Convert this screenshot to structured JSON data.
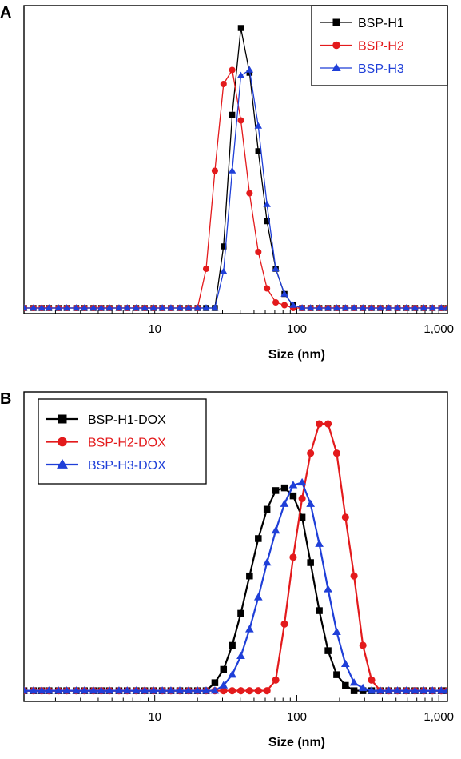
{
  "chart_data": [
    {
      "type": "line",
      "panel_label": "A",
      "xlabel": "Size (nm)",
      "xscale": "log",
      "xlim": [
        1.2,
        1150
      ],
      "ylim": [
        -0.02,
        1.08
      ],
      "y_axis_labels": false,
      "x_ticks": [
        {
          "value": 10,
          "label": "10"
        },
        {
          "value": 100,
          "label": "100"
        },
        {
          "value": 1000,
          "label": "1,000"
        }
      ],
      "legend": {
        "position": "top-right"
      },
      "series": [
        {
          "name": "BSP-H1",
          "color": "#000000",
          "marker": "square",
          "x": [
            1.2,
            1.4,
            1.6,
            1.8,
            2.1,
            2.4,
            2.8,
            3.2,
            3.7,
            4.2,
            4.8,
            5.6,
            6.4,
            7.4,
            8.5,
            9.8,
            11.3,
            13,
            15,
            17.3,
            20,
            23,
            26.5,
            30.5,
            35.1,
            40.4,
            46.5,
            53.6,
            61.7,
            71.1,
            81.9,
            94.3,
            109,
            125,
            144,
            166,
            191,
            220,
            253,
            292,
            336,
            387,
            445,
            512,
            590,
            680,
            783,
            902,
            1040,
            1150
          ],
          "y": [
            0,
            0,
            0,
            0,
            0,
            0,
            0,
            0,
            0,
            0,
            0,
            0,
            0,
            0,
            0,
            0,
            0,
            0,
            0,
            0,
            0,
            0,
            0,
            0.22,
            0.69,
            1.0,
            0.84,
            0.56,
            0.31,
            0.14,
            0.05,
            0.01,
            0,
            0,
            0,
            0,
            0,
            0,
            0,
            0,
            0,
            0,
            0,
            0,
            0,
            0,
            0,
            0,
            0,
            0
          ]
        },
        {
          "name": "BSP-H2",
          "color": "#e31a1c",
          "marker": "circle",
          "x": [
            1.2,
            1.4,
            1.6,
            1.8,
            2.1,
            2.4,
            2.8,
            3.2,
            3.7,
            4.2,
            4.8,
            5.6,
            6.4,
            7.4,
            8.5,
            9.8,
            11.3,
            13,
            15,
            17.3,
            20,
            23,
            26.5,
            30.5,
            35.1,
            40.4,
            46.5,
            53.6,
            61.7,
            71.1,
            81.9,
            94.3,
            109,
            125,
            144,
            166,
            191,
            220,
            253,
            292,
            336,
            387,
            445,
            512,
            590,
            680,
            783,
            902,
            1040,
            1150
          ],
          "y": [
            0,
            0,
            0,
            0,
            0,
            0,
            0,
            0,
            0,
            0,
            0,
            0,
            0,
            0,
            0,
            0,
            0,
            0,
            0,
            0,
            0,
            0.14,
            0.49,
            0.8,
            0.85,
            0.67,
            0.41,
            0.2,
            0.07,
            0.02,
            0.01,
            0,
            0,
            0,
            0,
            0,
            0,
            0,
            0,
            0,
            0,
            0,
            0,
            0,
            0,
            0,
            0,
            0,
            0,
            0
          ]
        },
        {
          "name": "BSP-H3",
          "color": "#1f3fd8",
          "marker": "triangle",
          "x": [
            1.2,
            1.4,
            1.6,
            1.8,
            2.1,
            2.4,
            2.8,
            3.2,
            3.7,
            4.2,
            4.8,
            5.6,
            6.4,
            7.4,
            8.5,
            9.8,
            11.3,
            13,
            15,
            17.3,
            20,
            23,
            26.5,
            30.5,
            35.1,
            40.4,
            46.5,
            53.6,
            61.7,
            71.1,
            81.9,
            94.3,
            109,
            125,
            144,
            166,
            191,
            220,
            253,
            292,
            336,
            387,
            445,
            512,
            590,
            680,
            783,
            902,
            1040,
            1150
          ],
          "y": [
            0,
            0,
            0,
            0,
            0,
            0,
            0,
            0,
            0,
            0,
            0,
            0,
            0,
            0,
            0,
            0,
            0,
            0,
            0,
            0,
            0,
            0,
            0,
            0.13,
            0.49,
            0.83,
            0.85,
            0.65,
            0.37,
            0.14,
            0.05,
            0.01,
            0,
            0,
            0,
            0,
            0,
            0,
            0,
            0,
            0,
            0,
            0,
            0,
            0,
            0,
            0,
            0,
            0,
            0
          ]
        }
      ]
    },
    {
      "type": "line",
      "panel_label": "B",
      "xlabel": "Size (nm)",
      "xscale": "log",
      "xlim": [
        1.2,
        1150
      ],
      "ylim": [
        -0.04,
        1.12
      ],
      "y_axis_labels": false,
      "x_ticks": [
        {
          "value": 10,
          "label": "10"
        },
        {
          "value": 100,
          "label": "100"
        },
        {
          "value": 1000,
          "label": "1,000"
        }
      ],
      "legend": {
        "position": "top-left"
      },
      "series": [
        {
          "name": "BSP-H1-DOX",
          "color": "#000000",
          "marker": "square",
          "x": [
            1.2,
            1.4,
            1.6,
            1.8,
            2.1,
            2.4,
            2.8,
            3.2,
            3.7,
            4.2,
            4.8,
            5.6,
            6.4,
            7.4,
            8.5,
            9.8,
            11.3,
            13,
            15,
            17.3,
            20,
            23,
            26.5,
            30.5,
            35.1,
            40.4,
            46.5,
            53.6,
            61.7,
            71.1,
            81.9,
            94.3,
            109,
            125,
            144,
            166,
            191,
            220,
            253,
            292,
            336,
            387,
            445,
            512,
            590,
            680,
            783,
            902,
            1040,
            1150
          ],
          "y": [
            0,
            0,
            0,
            0,
            0,
            0,
            0,
            0,
            0,
            0,
            0,
            0,
            0,
            0,
            0,
            0,
            0,
            0,
            0,
            0,
            0,
            0,
            0.03,
            0.08,
            0.17,
            0.29,
            0.43,
            0.57,
            0.68,
            0.75,
            0.76,
            0.73,
            0.65,
            0.48,
            0.3,
            0.15,
            0.06,
            0.02,
            0,
            0,
            0,
            0,
            0,
            0,
            0,
            0,
            0,
            0,
            0,
            0
          ]
        },
        {
          "name": "BSP-H2-DOX",
          "color": "#e31a1c",
          "marker": "circle",
          "x": [
            1.2,
            1.4,
            1.6,
            1.8,
            2.1,
            2.4,
            2.8,
            3.2,
            3.7,
            4.2,
            4.8,
            5.6,
            6.4,
            7.4,
            8.5,
            9.8,
            11.3,
            13,
            15,
            17.3,
            20,
            23,
            26.5,
            30.5,
            35.1,
            40.4,
            46.5,
            53.6,
            61.7,
            71.1,
            81.9,
            94.3,
            109,
            125,
            144,
            166,
            191,
            220,
            253,
            292,
            336,
            387,
            445,
            512,
            590,
            680,
            783,
            902,
            1040,
            1150
          ],
          "y": [
            0,
            0,
            0,
            0,
            0,
            0,
            0,
            0,
            0,
            0,
            0,
            0,
            0,
            0,
            0,
            0,
            0,
            0,
            0,
            0,
            0,
            0,
            0,
            0,
            0,
            0,
            0,
            0,
            0,
            0.04,
            0.25,
            0.5,
            0.72,
            0.89,
            1.0,
            1.0,
            0.89,
            0.65,
            0.43,
            0.17,
            0.04,
            0,
            0,
            0,
            0,
            0,
            0,
            0,
            0,
            0
          ]
        },
        {
          "name": "BSP-H3-DOX",
          "color": "#1f3fd8",
          "marker": "triangle",
          "x": [
            1.2,
            1.4,
            1.6,
            1.8,
            2.1,
            2.4,
            2.8,
            3.2,
            3.7,
            4.2,
            4.8,
            5.6,
            6.4,
            7.4,
            8.5,
            9.8,
            11.3,
            13,
            15,
            17.3,
            20,
            23,
            26.5,
            30.5,
            35.1,
            40.4,
            46.5,
            53.6,
            61.7,
            71.1,
            81.9,
            94.3,
            109,
            125,
            144,
            166,
            191,
            220,
            253,
            292,
            336,
            387,
            445,
            512,
            590,
            680,
            783,
            902,
            1040,
            1150
          ],
          "y": [
            0,
            0,
            0,
            0,
            0,
            0,
            0,
            0,
            0,
            0,
            0,
            0,
            0,
            0,
            0,
            0,
            0,
            0,
            0,
            0,
            0,
            0,
            0,
            0.02,
            0.06,
            0.13,
            0.23,
            0.35,
            0.48,
            0.6,
            0.7,
            0.77,
            0.78,
            0.7,
            0.55,
            0.38,
            0.22,
            0.1,
            0.03,
            0.01,
            0,
            0,
            0,
            0,
            0,
            0,
            0,
            0,
            0,
            0
          ]
        }
      ]
    }
  ]
}
